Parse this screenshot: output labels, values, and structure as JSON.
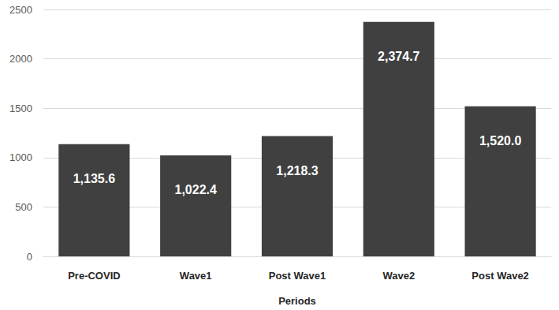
{
  "chart_data": {
    "type": "bar",
    "x_label": "Periods",
    "categories": [
      "Pre-COVID",
      "Wave1",
      "Post Wave1",
      "Wave2",
      "Post Wave2"
    ],
    "values": [
      1135.6,
      1022.4,
      1218.3,
      2374.7,
      1520.0
    ],
    "value_labels": [
      "1,135.6",
      "1,022.4",
      "1,218.3",
      "2,374.7",
      "1,520.0"
    ],
    "color": "#404040",
    "ylim": [
      0,
      2500
    ],
    "yticks": [
      0,
      500,
      1000,
      1500,
      2000,
      2500
    ],
    "grid": true,
    "data_labels": true
  }
}
